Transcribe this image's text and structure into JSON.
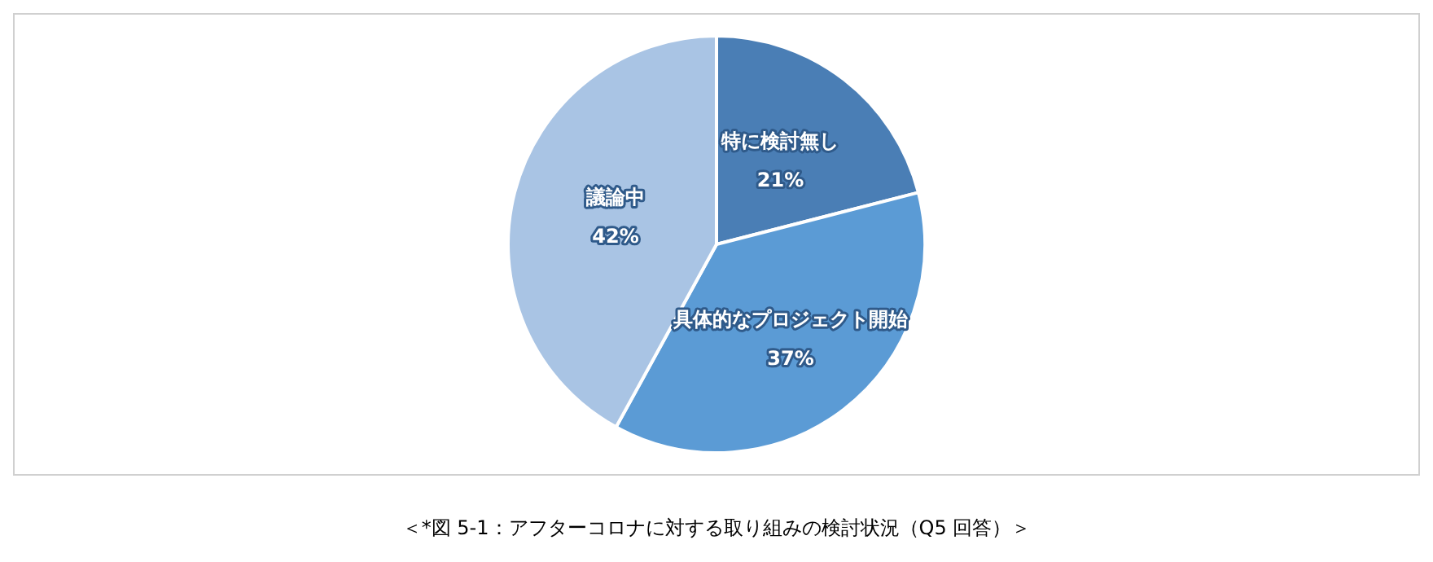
{
  "chart_data": {
    "type": "pie",
    "categories": [
      "特に検討無し",
      "具体的なプロジェクト開始",
      "議論中"
    ],
    "values": [
      21,
      37,
      42
    ],
    "colors": [
      "#4a7eb5",
      "#5b9bd5",
      "#a9c4e4"
    ],
    "value_labels": [
      "21%",
      "37%",
      "42%"
    ],
    "legend": false,
    "annotations": [
      "＜*図 5-1：アフターコロナに対する取り組みの検討状況（Q5 回答）＞"
    ]
  }
}
